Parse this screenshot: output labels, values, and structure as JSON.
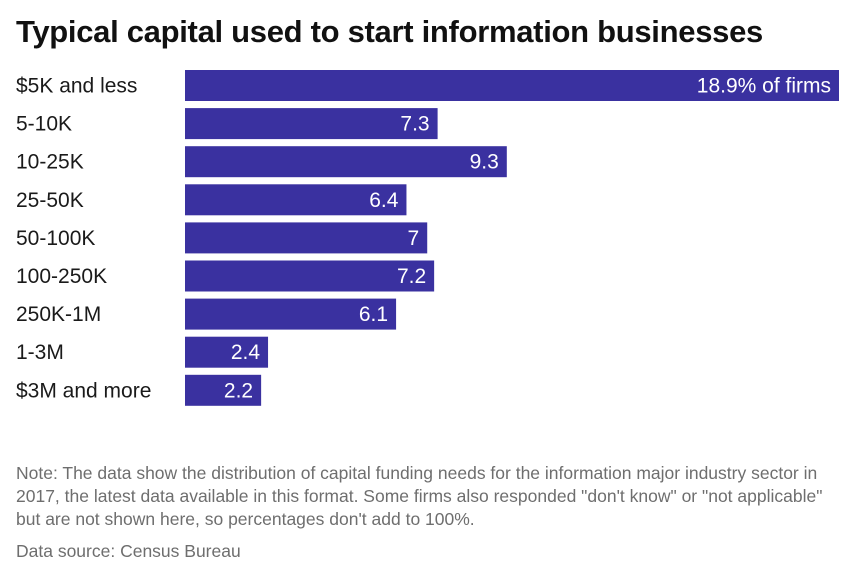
{
  "title": "Typical capital used to start information businesses",
  "note": "Note: The data show the distribution of capital funding needs for the information major industry sector in 2017, the latest data available in this format. Some firms also responded \"don't know\" or \"not applicable\" but are not shown here, so percentages don't add to 100%.",
  "source": "Data source: Census Bureau",
  "colors": {
    "bar": "#3a31a0"
  },
  "chart_data": {
    "type": "bar",
    "orientation": "horizontal",
    "title": "Typical capital used to start information businesses",
    "categories": [
      "$5K and less",
      "5-10K",
      "10-25K",
      "25-50K",
      "50-100K",
      "100-250K",
      "250K-1M",
      "1-3M",
      "$3M and more"
    ],
    "values": [
      18.9,
      7.3,
      9.3,
      6.4,
      7,
      7.2,
      6.1,
      2.4,
      2.2
    ],
    "value_labels": [
      "18.9% of firms",
      "7.3",
      "9.3",
      "6.4",
      "7",
      "7.2",
      "6.1",
      "2.4",
      "2.2"
    ],
    "xlim": [
      0,
      18.9
    ],
    "grid": false,
    "legend": "none"
  }
}
